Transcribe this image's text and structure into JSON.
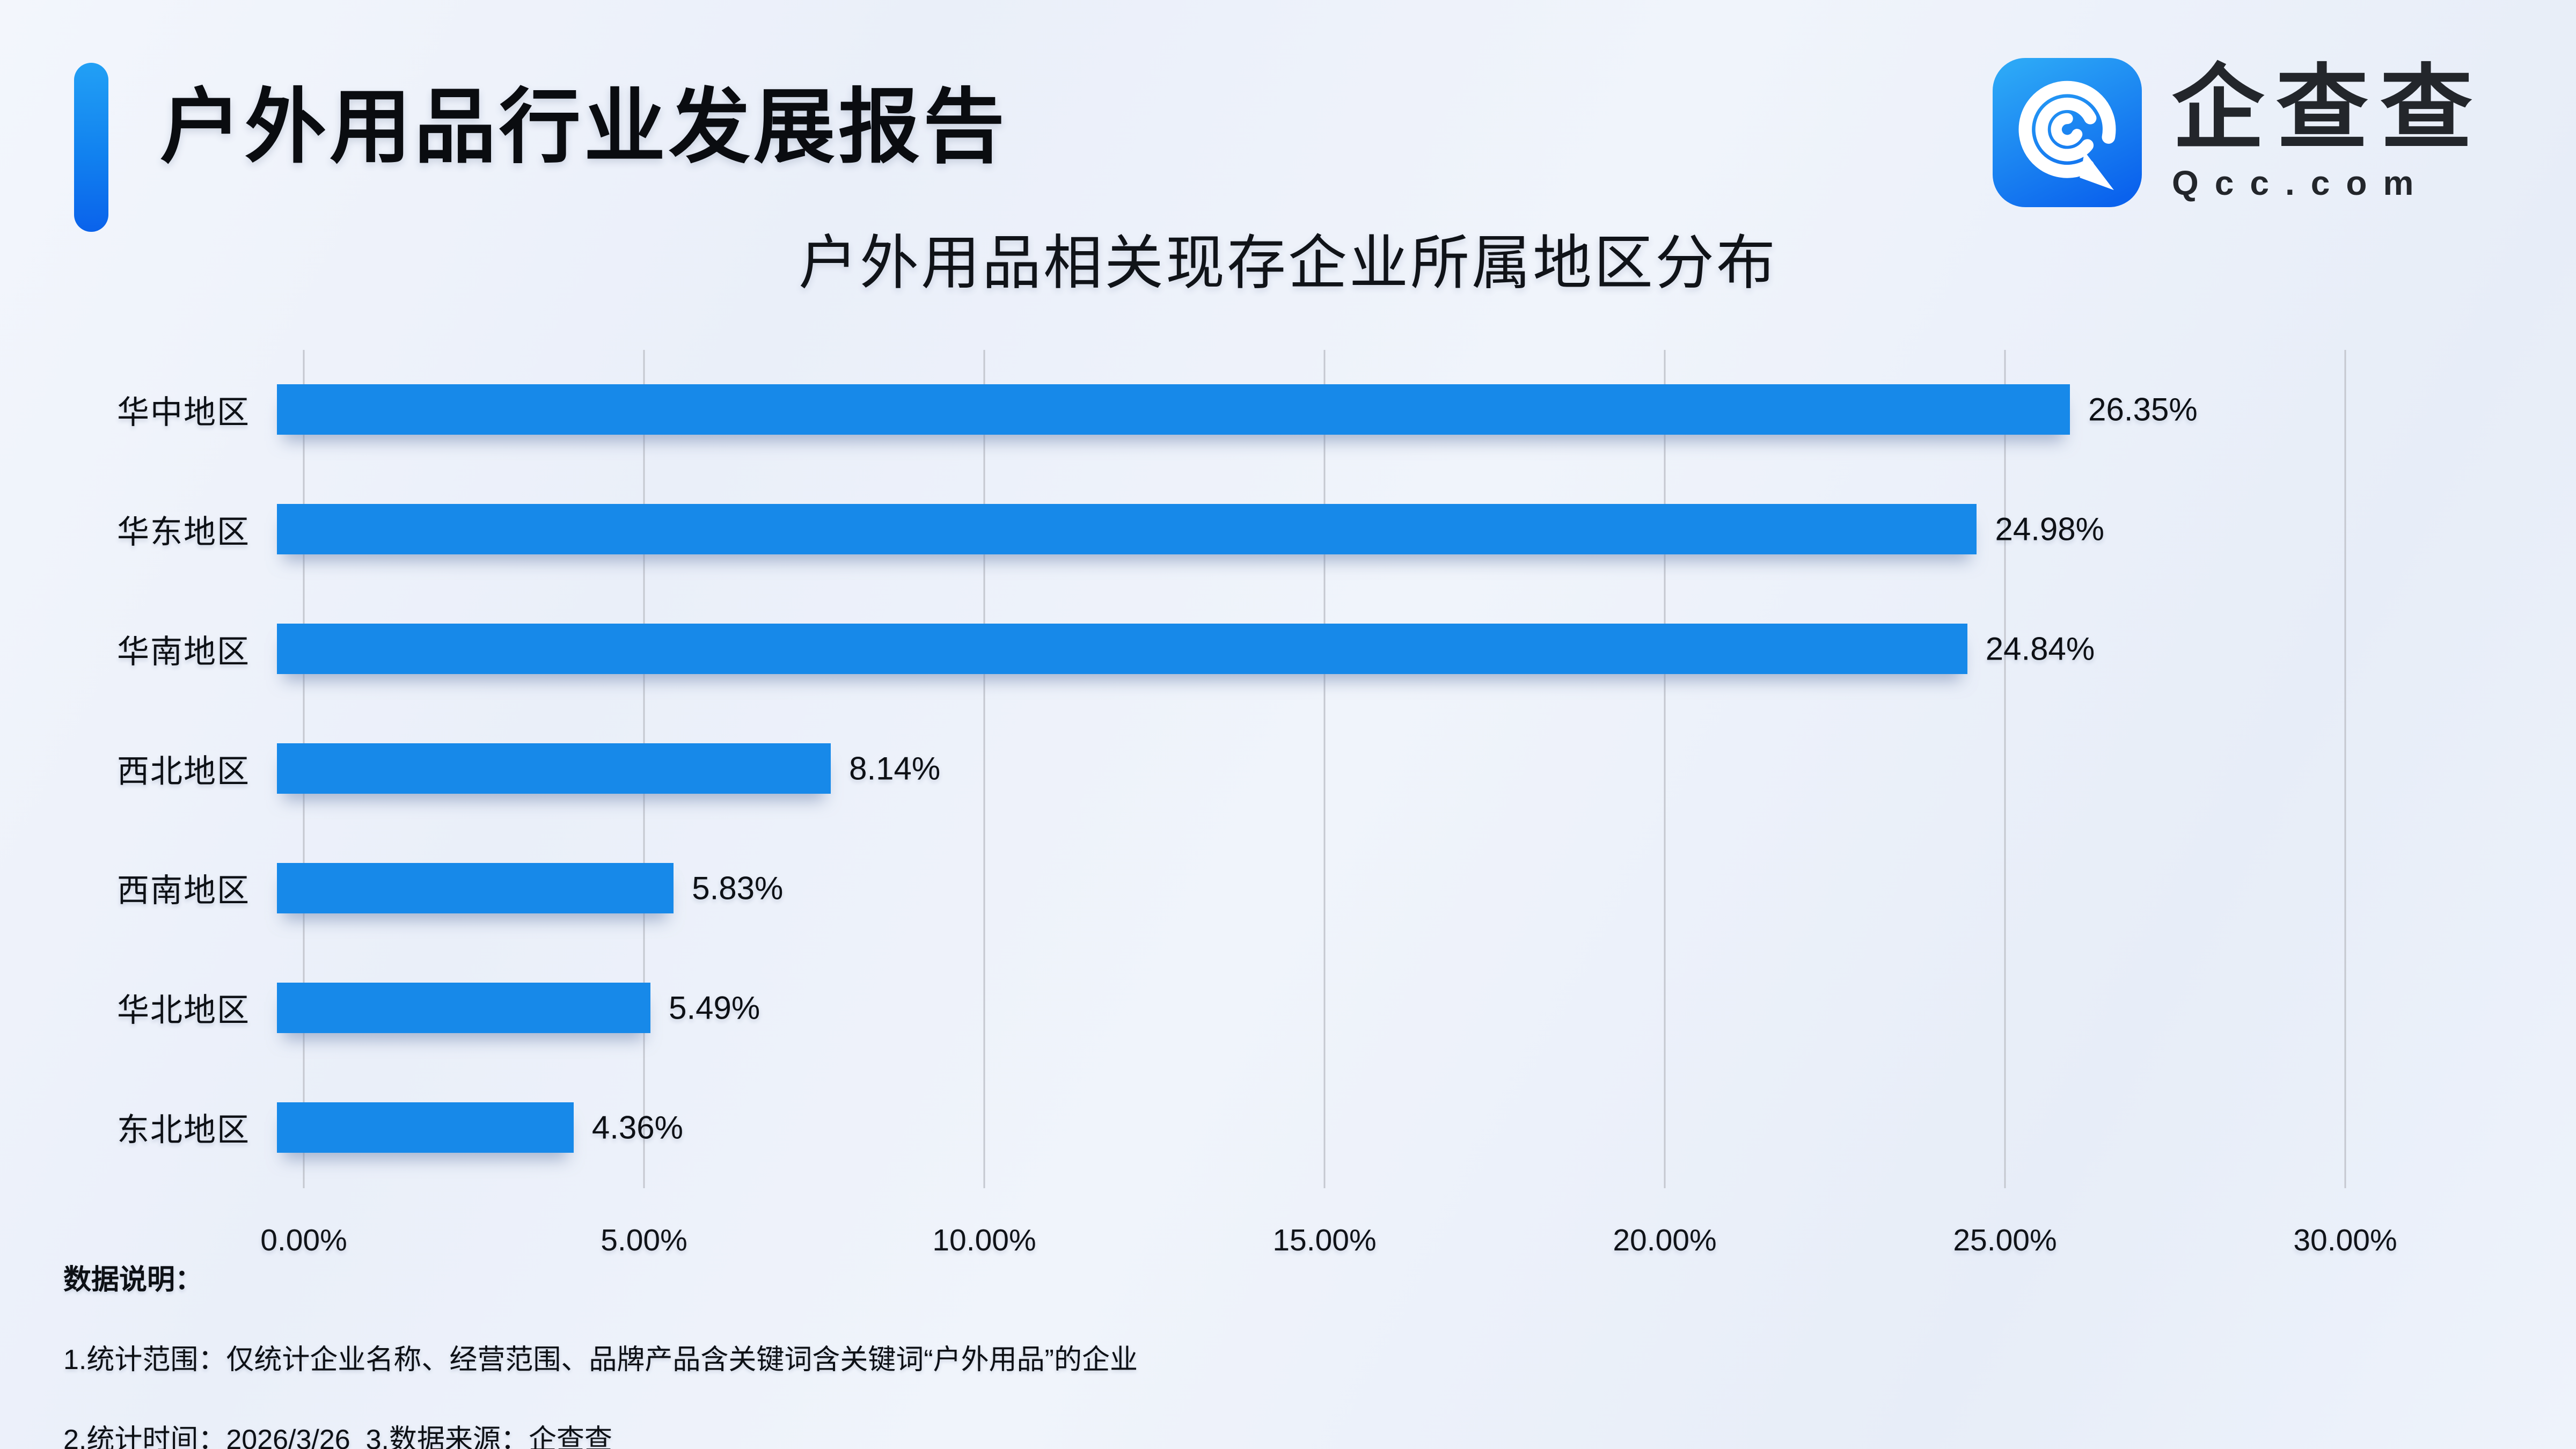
{
  "page": {
    "title": "户外用品行业发展报告",
    "background_color": "#edf1f9",
    "text_color": "#0d1015"
  },
  "logo": {
    "name": "企查查",
    "domain": "Qcc.com",
    "icon": "qcc-spiral-q-icon",
    "icon_gradient_top": "#2ca7f6",
    "icon_gradient_bottom": "#0a62ed"
  },
  "accent_bar": {
    "gradient_top": "#22a0f5",
    "gradient_bottom": "#0a62eb"
  },
  "chart_data": {
    "type": "bar",
    "orientation": "horizontal",
    "title": "户外用品相关现存企业所属地区分布",
    "categories": [
      "华中地区",
      "华东地区",
      "华南地区",
      "西北地区",
      "西南地区",
      "华北地区",
      "东北地区"
    ],
    "values": [
      26.35,
      24.98,
      24.84,
      8.14,
      5.83,
      5.49,
      4.36
    ],
    "value_labels": [
      "26.35%",
      "24.98%",
      "24.84%",
      "8.14%",
      "5.83%",
      "5.49%",
      "4.36%"
    ],
    "x_ticks": [
      "0.00%",
      "5.00%",
      "10.00%",
      "15.00%",
      "20.00%",
      "25.00%",
      "30.00%"
    ],
    "x_tick_values": [
      0,
      5,
      10,
      15,
      20,
      25,
      30
    ],
    "xlim": [
      0,
      30
    ],
    "xlabel": "",
    "ylabel": "",
    "grid": true,
    "legend": false,
    "bar_color": "#1789e9",
    "gridline_color": "#c5c8d0"
  },
  "notes": {
    "heading": "数据说明：",
    "line1": "1.统计范围：仅统计企业名称、经营范围、品牌产品含关键词含关键词“户外用品”的企业",
    "line2": "2.统计时间：2026/3/26  3.数据来源：企查查"
  }
}
